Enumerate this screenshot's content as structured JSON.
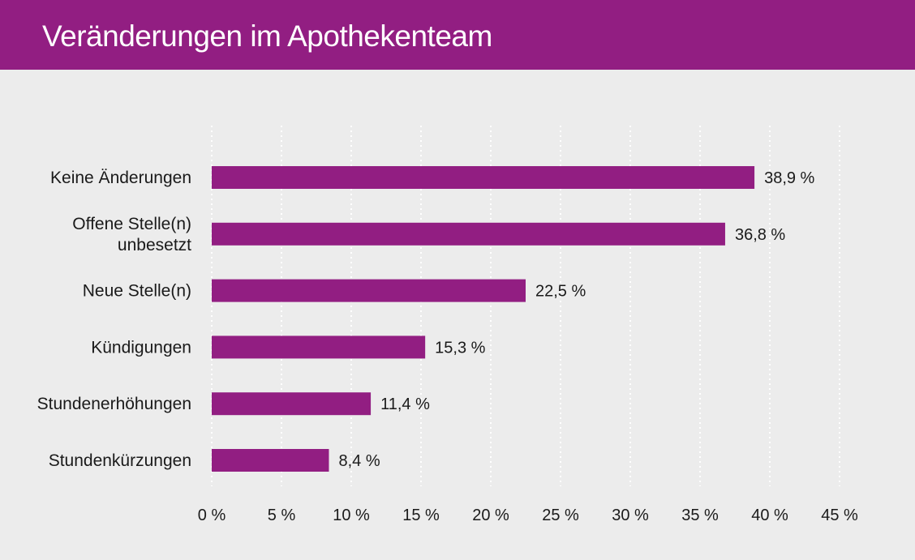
{
  "title": "Veränderungen im Apothekenteam",
  "colors": {
    "header": "#921e82",
    "bar": "#921e82",
    "background": "#ececec",
    "grid": "#ffffff"
  },
  "chart_data": {
    "type": "bar",
    "orientation": "horizontal",
    "title": "Veränderungen im Apothekenteam",
    "categories": [
      [
        "Keine Änderungen"
      ],
      [
        "Offene Stelle(n)",
        "unbesetzt"
      ],
      [
        "Neue Stelle(n)"
      ],
      [
        "Kündigungen"
      ],
      [
        "Stundenerhöhungen"
      ],
      [
        "Stundenkürzungen"
      ]
    ],
    "values": [
      38.9,
      36.8,
      22.5,
      15.3,
      11.4,
      8.4
    ],
    "value_labels": [
      "38,9 %",
      "36,8 %",
      "22,5 %",
      "15,3 %",
      "11,4 %",
      "8,4 %"
    ],
    "xlim": [
      0,
      45
    ],
    "x_ticks": [
      0,
      5,
      10,
      15,
      20,
      25,
      30,
      35,
      40,
      45
    ],
    "x_tick_labels": [
      "0 %",
      "5 %",
      "10 %",
      "15 %",
      "20 %",
      "25 %",
      "30 %",
      "35 %",
      "40 %",
      "45 %"
    ],
    "grid": "vertical dotted",
    "legend": "none"
  }
}
